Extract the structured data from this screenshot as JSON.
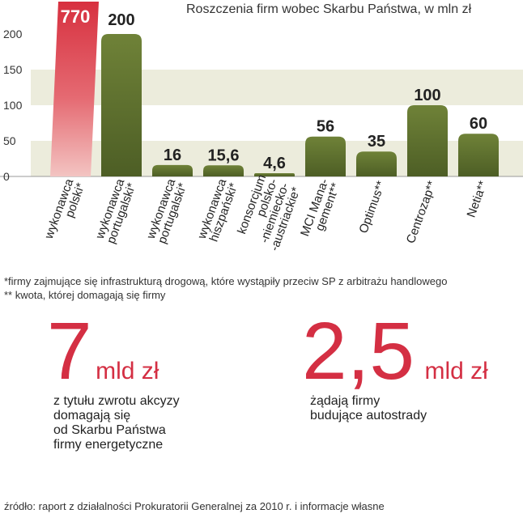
{
  "chart_data": {
    "type": "bar",
    "title": "Roszczenia firm wobec Skarbu Państwa, w mln zł",
    "categories": [
      [
        "wykonawca",
        "polski*"
      ],
      [
        "wykonawca",
        "portugalski*"
      ],
      [
        "wykonawca",
        "portugalski*"
      ],
      [
        "wykonawca",
        "hiszpański*"
      ],
      [
        "konsorcjum",
        "polsko-",
        "-niemiecko-",
        "-austriackie*"
      ],
      [
        "MCI Mana-",
        "gement**"
      ],
      [
        "Optimus**"
      ],
      [
        "Centrozap**"
      ],
      [
        "Netia**"
      ]
    ],
    "values": [
      770,
      200,
      16,
      15.6,
      4.6,
      56,
      35,
      100,
      60
    ],
    "value_labels": [
      "770",
      "200",
      "16",
      "15,6",
      "4,6",
      "56",
      "35",
      "100",
      "60"
    ],
    "highlight_index": 0,
    "ylim": [
      0,
      200
    ],
    "yticks": [
      "0",
      "50",
      "100",
      "150",
      "200"
    ],
    "ytick_values": [
      0,
      50,
      100,
      150,
      200
    ],
    "grid": false,
    "colors": {
      "highlight": "#d42f43",
      "bar": "#5a6e2e",
      "band": "#ececdc"
    }
  },
  "footnotes": [
    "*firmy zajmujące się infrastrukturą drogową, które wystąpiły przeciw SP z arbitrażu handlowego",
    "** kwota, której domagają się firmy"
  ],
  "stats": [
    {
      "number": "7",
      "unit": "mld zł",
      "description": [
        "z tytułu zwrotu akcyzy",
        "domagają się",
        "od Skarbu Państwa",
        "firmy energetyczne"
      ]
    },
    {
      "number": "2,5",
      "unit": "mld zł",
      "description": [
        "żądają firmy",
        "budujące autostrady"
      ]
    }
  ],
  "source": "źródło: raport z działalności Prokuratorii Generalnej za 2010 r. i  informacje własne"
}
